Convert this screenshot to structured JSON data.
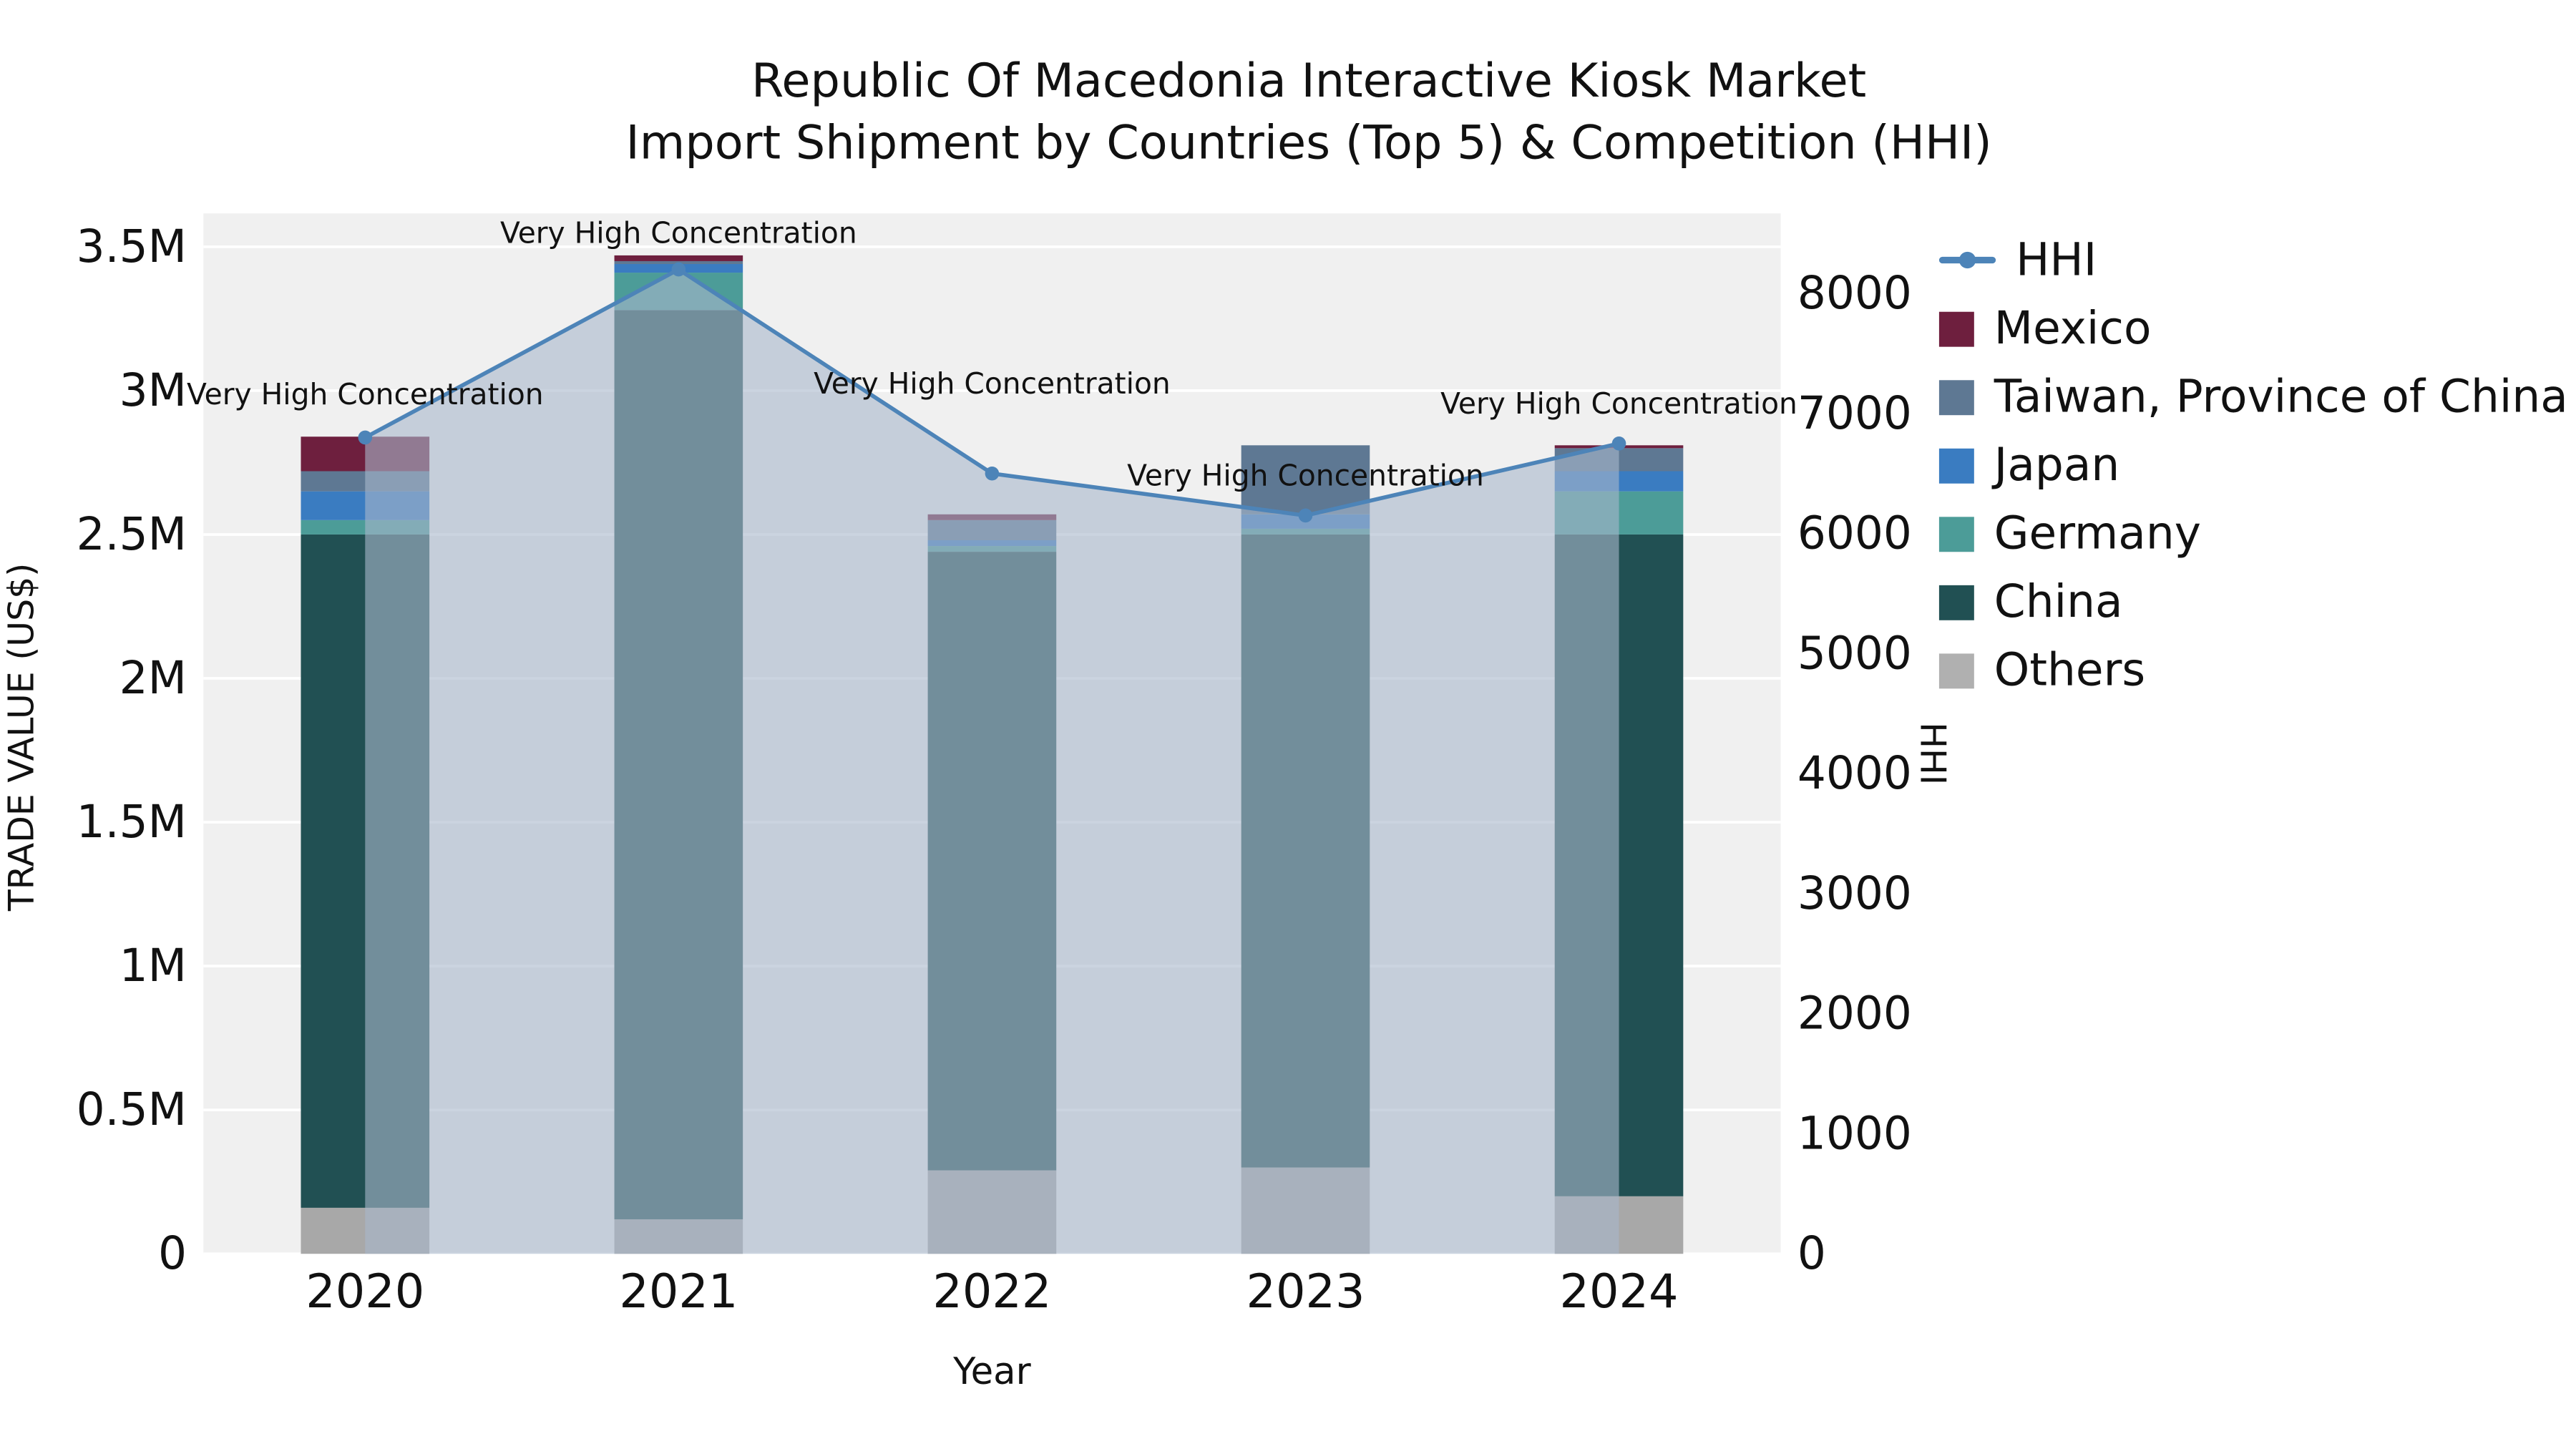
{
  "title": {
    "line1": "Republic Of Macedonia Interactive Kiosk Market",
    "line2": "Import Shipment by Countries (Top 5) & Competition (HHI)"
  },
  "axes": {
    "left_label": "TRADE VALUE (US$)",
    "right_label": "HHI",
    "x_label": "Year"
  },
  "legend": {
    "items": [
      {
        "label": "HHI",
        "type": "line",
        "color": "#4d84b8"
      },
      {
        "label": "Mexico",
        "type": "swatch",
        "color": "#6e1f3e"
      },
      {
        "label": "Taiwan, Province of China",
        "type": "swatch",
        "color": "#5e7893"
      },
      {
        "label": "Japan",
        "type": "swatch",
        "color": "#3a7cc1"
      },
      {
        "label": "Germany",
        "type": "swatch",
        "color": "#4c9c98"
      },
      {
        "label": "China",
        "type": "swatch",
        "color": "#215053"
      },
      {
        "label": "Others",
        "type": "swatch",
        "color": "#b0b0b0"
      }
    ]
  },
  "chart_data": {
    "type": "combo-stacked-bar-line",
    "title": "Republic Of Macedonia Interactive Kiosk Market Import Shipment by Countries (Top 5) & Competition (HHI)",
    "xlabel": "Year",
    "ylabel_left": "TRADE VALUE (US$)",
    "ylabel_right": "HHI",
    "categories": [
      "2020",
      "2021",
      "2022",
      "2023",
      "2024"
    ],
    "series": [
      {
        "name": "Others",
        "color": "#a8a8a8",
        "values": [
          160000,
          120000,
          290000,
          300000,
          200000
        ]
      },
      {
        "name": "China",
        "color": "#215053",
        "values": [
          2340000,
          3160000,
          2150000,
          2200000,
          2300000
        ]
      },
      {
        "name": "Germany",
        "color": "#4c9c98",
        "values": [
          50000,
          130000,
          20000,
          20000,
          150000
        ]
      },
      {
        "name": "Japan",
        "color": "#3a7cc1",
        "values": [
          100000,
          30000,
          20000,
          50000,
          70000
        ]
      },
      {
        "name": "Taiwan, Province of China",
        "color": "#5e7893",
        "values": [
          70000,
          10000,
          70000,
          240000,
          80000
        ]
      },
      {
        "name": "Mexico",
        "color": "#6e1f3e",
        "values": [
          120000,
          20000,
          20000,
          0,
          10000
        ]
      }
    ],
    "line": {
      "name": "HHI",
      "color": "#4d84b8",
      "area_fill": "rgba(168,184,204,0.6)",
      "values": [
        6800,
        8200,
        6500,
        6150,
        6750
      ]
    },
    "annotations": [
      "Very High Concentration",
      "Very High Concentration",
      "Very High Concentration",
      "Very High Concentration",
      "Very High Concentration"
    ],
    "left_axis": {
      "max": 3500000,
      "ticks": [
        0,
        500000,
        1000000,
        1500000,
        2000000,
        2500000,
        3000000,
        3500000
      ],
      "tick_labels": [
        "0",
        "0.5M",
        "1M",
        "1.5M",
        "2M",
        "2.5M",
        "3M",
        "3.5M"
      ]
    },
    "right_axis": {
      "max": 8000,
      "ticks": [
        0,
        1000,
        2000,
        3000,
        4000,
        5000,
        6000,
        7000,
        8000
      ],
      "tick_labels": [
        "0",
        "1000",
        "2000",
        "3000",
        "4000",
        "5000",
        "6000",
        "7000",
        "8000"
      ]
    }
  }
}
